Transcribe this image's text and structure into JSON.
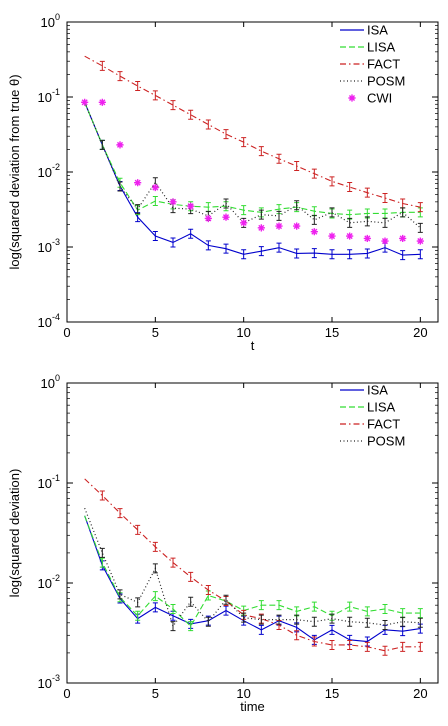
{
  "chart_data": [
    {
      "type": "line",
      "xlabel": "t",
      "ylabel": "log(squared deviation from true θ)",
      "xlim": [
        0,
        21
      ],
      "ylim": [
        0.0001,
        1
      ],
      "yscale": "log",
      "grid": false,
      "legend_position": "top-right",
      "x_ticks": [
        "0",
        "5",
        "10",
        "15",
        "20"
      ],
      "y_ticks": [
        {
          "base": "10",
          "exp": "-4"
        },
        {
          "base": "10",
          "exp": "-3"
        },
        {
          "base": "10",
          "exp": "-2"
        },
        {
          "base": "10",
          "exp": "-1"
        },
        {
          "base": "10",
          "exp": "0"
        }
      ],
      "x": [
        1,
        2,
        3,
        4,
        5,
        6,
        7,
        8,
        9,
        10,
        11,
        12,
        13,
        14,
        15,
        16,
        17,
        18,
        19,
        20
      ],
      "series": [
        {
          "name": "ISA",
          "color": "#0000cc",
          "style": "solid",
          "marker": "none",
          "errorbars": true,
          "values": [
            0.085,
            0.023,
            0.0065,
            0.0025,
            0.0014,
            0.00115,
            0.0015,
            0.00105,
            0.00095,
            0.0008,
            0.00088,
            0.00098,
            0.00082,
            0.00083,
            0.0008,
            0.0008,
            0.00082,
            0.00098,
            0.00078,
            0.0008
          ]
        },
        {
          "name": "LISA",
          "color": "#33dd33",
          "style": "dashed",
          "marker": "none",
          "errorbars": true,
          "values": [
            0.085,
            0.023,
            0.0072,
            0.0031,
            0.0041,
            0.0037,
            0.0035,
            0.0034,
            0.0035,
            0.0031,
            0.0029,
            0.0032,
            0.0034,
            0.003,
            0.0028,
            0.0027,
            0.0028,
            0.0028,
            0.0029,
            0.0029
          ]
        },
        {
          "name": "FACT",
          "color": "#cc2222",
          "style": "dashdot",
          "marker": "none",
          "errorbars": true,
          "values": [
            0.35,
            0.26,
            0.19,
            0.14,
            0.105,
            0.078,
            0.058,
            0.043,
            0.032,
            0.025,
            0.019,
            0.015,
            0.012,
            0.0095,
            0.0075,
            0.0063,
            0.0053,
            0.0045,
            0.0038,
            0.0034
          ]
        },
        {
          "name": "POSM",
          "color": "#222222",
          "style": "dotted",
          "marker": "none",
          "errorbars": true,
          "values": [
            0.085,
            0.023,
            0.0064,
            0.0032,
            0.0073,
            0.0033,
            0.0032,
            0.0026,
            0.0038,
            0.0021,
            0.0027,
            0.0026,
            0.0036,
            0.0023,
            0.0029,
            0.0021,
            0.0022,
            0.0021,
            0.0029,
            0.0018
          ]
        },
        {
          "name": "CWI",
          "color": "#ee22ee",
          "style": "none",
          "marker": "star",
          "errorbars": false,
          "values": [
            0.085,
            0.085,
            0.023,
            0.0072,
            0.0062,
            0.004,
            0.0035,
            0.0024,
            0.0025,
            0.0021,
            0.0018,
            0.0019,
            0.0019,
            0.0016,
            0.0014,
            0.0014,
            0.0013,
            0.0012,
            0.0013,
            0.0012
          ]
        }
      ]
    },
    {
      "type": "line",
      "xlabel": "time",
      "ylabel": "log(squared deviation)",
      "xlim": [
        0,
        21
      ],
      "ylim": [
        0.001,
        1
      ],
      "yscale": "log",
      "grid": false,
      "legend_position": "top-right",
      "x_ticks": [
        "0",
        "5",
        "10",
        "15",
        "20"
      ],
      "y_ticks": [
        {
          "base": "10",
          "exp": "-3"
        },
        {
          "base": "10",
          "exp": "-2"
        },
        {
          "base": "10",
          "exp": "-1"
        },
        {
          "base": "10",
          "exp": "0"
        }
      ],
      "x": [
        1,
        2,
        3,
        4,
        5,
        6,
        7,
        8,
        9,
        10,
        11,
        12,
        13,
        14,
        15,
        16,
        17,
        18,
        19,
        20
      ],
      "series": [
        {
          "name": "ISA",
          "color": "#0000cc",
          "style": "solid",
          "marker": "none",
          "errorbars": true,
          "values": [
            0.047,
            0.015,
            0.007,
            0.0044,
            0.0057,
            0.0047,
            0.0039,
            0.0042,
            0.0053,
            0.0042,
            0.0034,
            0.0042,
            0.0036,
            0.0027,
            0.0034,
            0.0027,
            0.0026,
            0.0034,
            0.0033,
            0.0035
          ]
        },
        {
          "name": "LISA",
          "color": "#33dd33",
          "style": "dashed",
          "marker": "none",
          "errorbars": true,
          "values": [
            0.047,
            0.016,
            0.0072,
            0.0047,
            0.0074,
            0.0055,
            0.0037,
            0.0075,
            0.0066,
            0.0053,
            0.006,
            0.006,
            0.0052,
            0.0058,
            0.0047,
            0.0058,
            0.0052,
            0.0055,
            0.005,
            0.005
          ]
        },
        {
          "name": "FACT",
          "color": "#cc2222",
          "style": "dashdot",
          "marker": "none",
          "errorbars": true,
          "values": [
            0.11,
            0.075,
            0.05,
            0.034,
            0.023,
            0.016,
            0.0115,
            0.0085,
            0.0066,
            0.0048,
            0.0044,
            0.0038,
            0.003,
            0.0026,
            0.0024,
            0.0024,
            0.0023,
            0.0021,
            0.0023,
            0.0023
          ]
        },
        {
          "name": "POSM",
          "color": "#222222",
          "style": "dotted",
          "marker": "none",
          "errorbars": true,
          "values": [
            0.056,
            0.02,
            0.0077,
            0.0064,
            0.014,
            0.0037,
            0.0065,
            0.0041,
            0.0068,
            0.0045,
            0.0043,
            0.0043,
            0.0043,
            0.0041,
            0.0044,
            0.0041,
            0.004,
            0.0038,
            0.0041,
            0.004
          ]
        }
      ]
    }
  ]
}
